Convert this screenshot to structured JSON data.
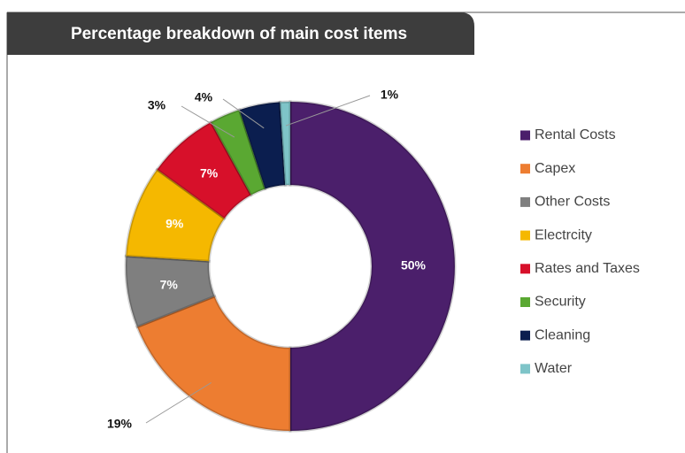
{
  "chart_data": {
    "type": "donut",
    "title": "Percentage breakdown of main cost items",
    "categories": [
      "Rental Costs",
      "Capex",
      "Other Costs",
      "Electrcity",
      "Rates and Taxes",
      "Security",
      "Cleaning",
      "Water"
    ],
    "values": [
      50,
      19,
      7,
      9,
      7,
      3,
      4,
      1
    ],
    "value_labels": [
      "50%",
      "19%",
      "7%",
      "9%",
      "7%",
      "3%",
      "4%",
      "1%"
    ],
    "colors": [
      "#4b1f6b",
      "#ed7d31",
      "#7f7f7f",
      "#f5b800",
      "#d7102a",
      "#5aa832",
      "#0b1e4f",
      "#7ec4c8"
    ],
    "legend": "right"
  }
}
